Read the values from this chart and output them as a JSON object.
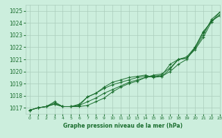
{
  "bg_color": "#cceedd",
  "grid_color": "#aaccbb",
  "line_color": "#1a6e2e",
  "marker_color": "#1a6e2e",
  "label_color": "#1a6e2e",
  "title": "Graphe pression niveau de la mer (hPa)",
  "title_color": "#1a6e2e",
  "xlim": [
    -0.5,
    23
  ],
  "ylim": [
    1016.5,
    1025.5
  ],
  "yticks": [
    1017,
    1018,
    1019,
    1020,
    1021,
    1022,
    1023,
    1024,
    1025
  ],
  "xticks": [
    0,
    1,
    2,
    3,
    4,
    5,
    6,
    7,
    8,
    9,
    10,
    11,
    12,
    13,
    14,
    15,
    16,
    17,
    18,
    19,
    20,
    21,
    22,
    23
  ],
  "series": [
    [
      1016.8,
      1017.0,
      1017.1,
      1017.4,
      1017.1,
      1017.1,
      1017.1,
      1017.2,
      1017.5,
      1017.8,
      1018.3,
      1018.7,
      1019.0,
      1019.2,
      1019.5,
      1019.6,
      1019.6,
      1020.2,
      1021.0,
      1021.1,
      1021.8,
      1022.8,
      1024.1,
      1024.7
    ],
    [
      1016.8,
      1017.0,
      1017.1,
      1017.3,
      1017.1,
      1017.1,
      1017.2,
      1017.5,
      1017.8,
      1018.2,
      1018.5,
      1018.8,
      1019.1,
      1019.3,
      1019.5,
      1019.7,
      1019.8,
      1020.3,
      1021.0,
      1021.1,
      1021.9,
      1023.0,
      1024.3,
      1024.9
    ],
    [
      1016.8,
      1017.0,
      1017.1,
      1017.3,
      1017.1,
      1017.1,
      1017.2,
      1017.9,
      1018.2,
      1018.6,
      1018.9,
      1019.1,
      1019.3,
      1019.5,
      1019.6,
      1019.6,
      1019.7,
      1020.6,
      1021.0,
      1021.2,
      1022.0,
      1023.2,
      1024.2,
      1024.6
    ],
    [
      1016.8,
      1017.0,
      1017.1,
      1017.5,
      1017.1,
      1017.1,
      1017.3,
      1017.9,
      1018.2,
      1018.7,
      1019.1,
      1019.3,
      1019.5,
      1019.6,
      1019.7,
      1019.5,
      1019.6,
      1020.0,
      1020.6,
      1021.0,
      1022.0,
      1023.3,
      1024.1,
      1024.9
    ]
  ]
}
